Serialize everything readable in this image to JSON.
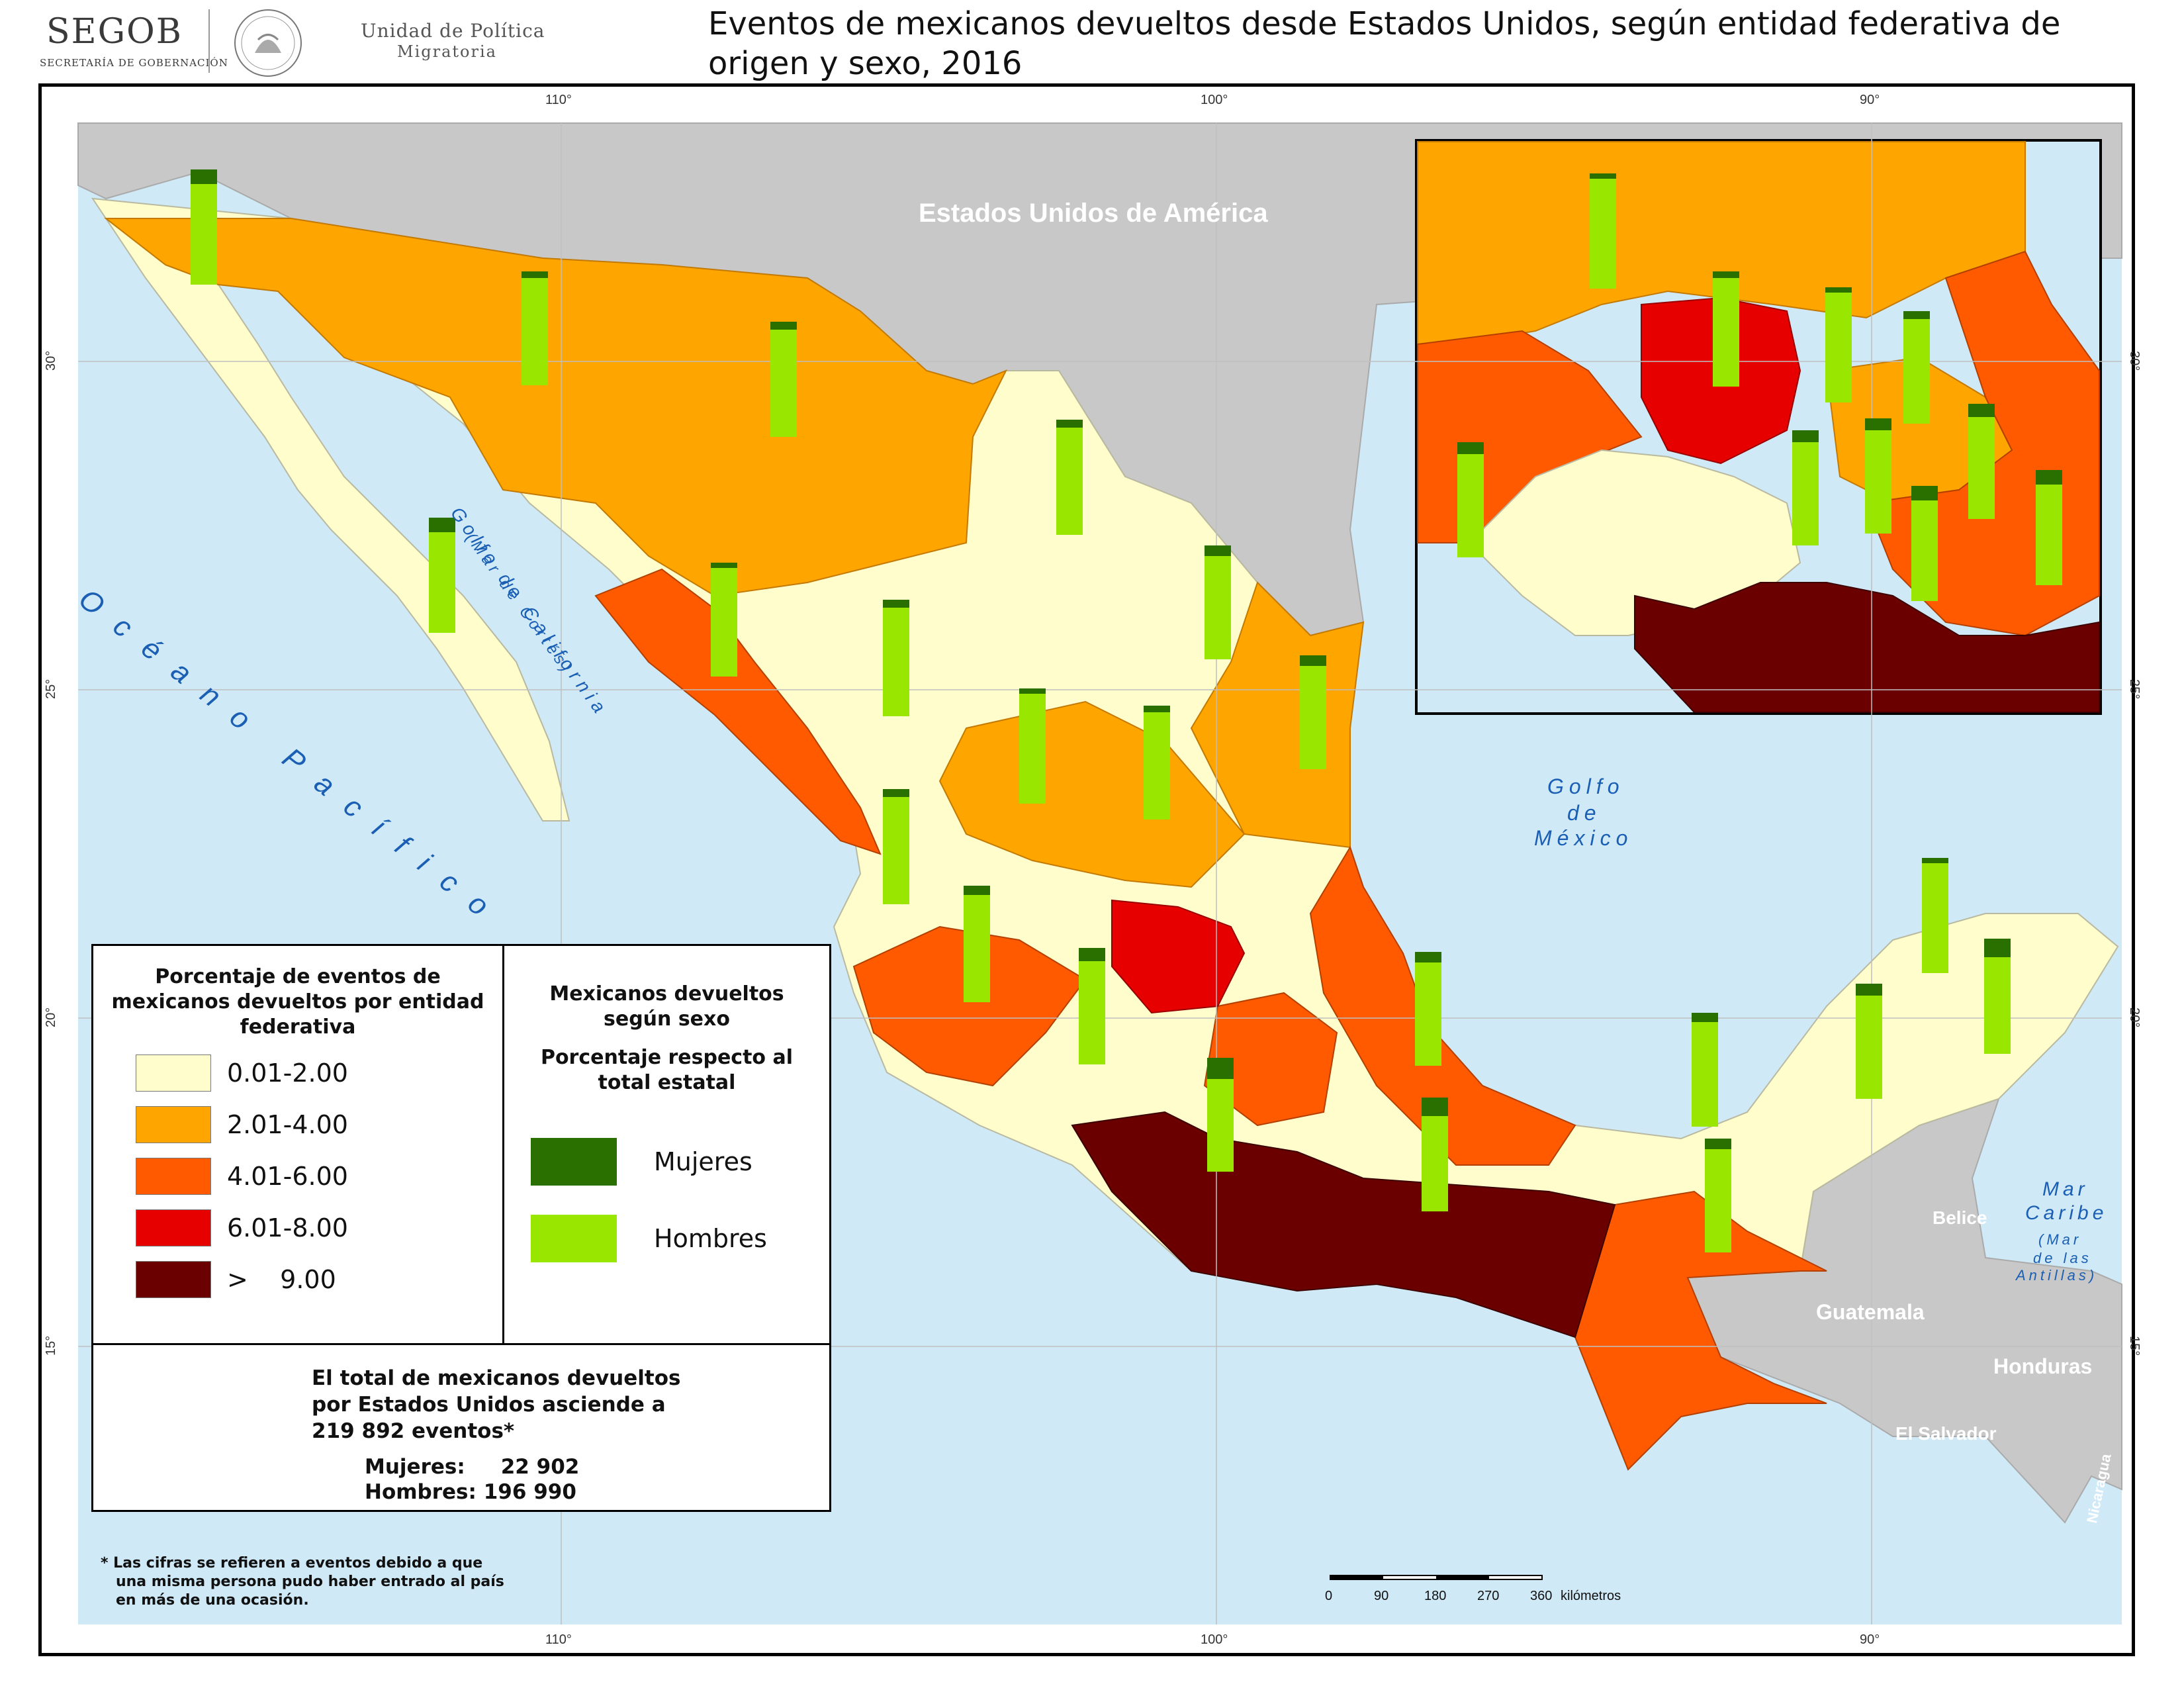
{
  "header": {
    "agency": "SEGOB",
    "agency_sub": "SECRETARÍA DE GOBERNACIÓN",
    "unit_line1": "Unidad de Política",
    "unit_line2": "Migratoria",
    "title": "Eventos de mexicanos devueltos desde Estados Unidos, según entidad federativa de origen y sexo, 2016"
  },
  "map_labels": {
    "usa": "Estados Unidos de América",
    "pacific": "Océano Pacífico",
    "gulf_california": "Golfo de California",
    "gulf_california_sub": "(Mar de Cortés)",
    "gulf_mexico_1": "Golfo",
    "gulf_mexico_2": "de",
    "gulf_mexico_3": "México",
    "caribbean_1": "Mar",
    "caribbean_2": "Caribe",
    "caribbean_3": "(Mar",
    "caribbean_4": "de las",
    "caribbean_5": "Antillas)",
    "belize": "Belice",
    "guatemala": "Guatemala",
    "honduras": "Honduras",
    "el_salvador": "El Salvador",
    "nicaragua": "Nicaragua"
  },
  "graticule": {
    "top_lon": [
      "110°",
      "100°",
      "90°"
    ],
    "bottom_lon": [
      "110°",
      "100°",
      "90°"
    ],
    "lat": [
      "30°",
      "25°",
      "20°",
      "15°"
    ]
  },
  "scale_bar": {
    "ticks": [
      "0",
      "90",
      "180",
      "270",
      "360"
    ],
    "unit": "kilómetros"
  },
  "legend": {
    "choropleth_title": "Porcentaje de eventos de mexicanos devueltos por entidad federativa",
    "classes": [
      {
        "label": "0.01-2.00",
        "color": "#fffdcc"
      },
      {
        "label": "2.01-4.00",
        "color": "#ffa500"
      },
      {
        "label": "4.01-6.00",
        "color": "#ff5a00"
      },
      {
        "label": "6.01-8.00",
        "color": "#e60000"
      },
      {
        "label": ">    9.00",
        "color": "#6b0000"
      }
    ],
    "sex_title_1": "Mexicanos devueltos según sexo",
    "sex_title_2": "Porcentaje respecto al total estatal",
    "women_label": "Mujeres",
    "men_label": "Hombres",
    "women_color": "#2a7000",
    "men_color": "#99e600"
  },
  "totals": {
    "line1": "El total de mexicanos devueltos",
    "line2": "por Estados Unidos asciende a",
    "line3": "219 892 eventos*",
    "women": "Mujeres:     22 902",
    "men": "Hombres: 196 990"
  },
  "footnote": "* Las cifras se refieren a eventos debido a que\n   una misma persona pudo haber entrado al país\n   en más de una ocasión."
}
